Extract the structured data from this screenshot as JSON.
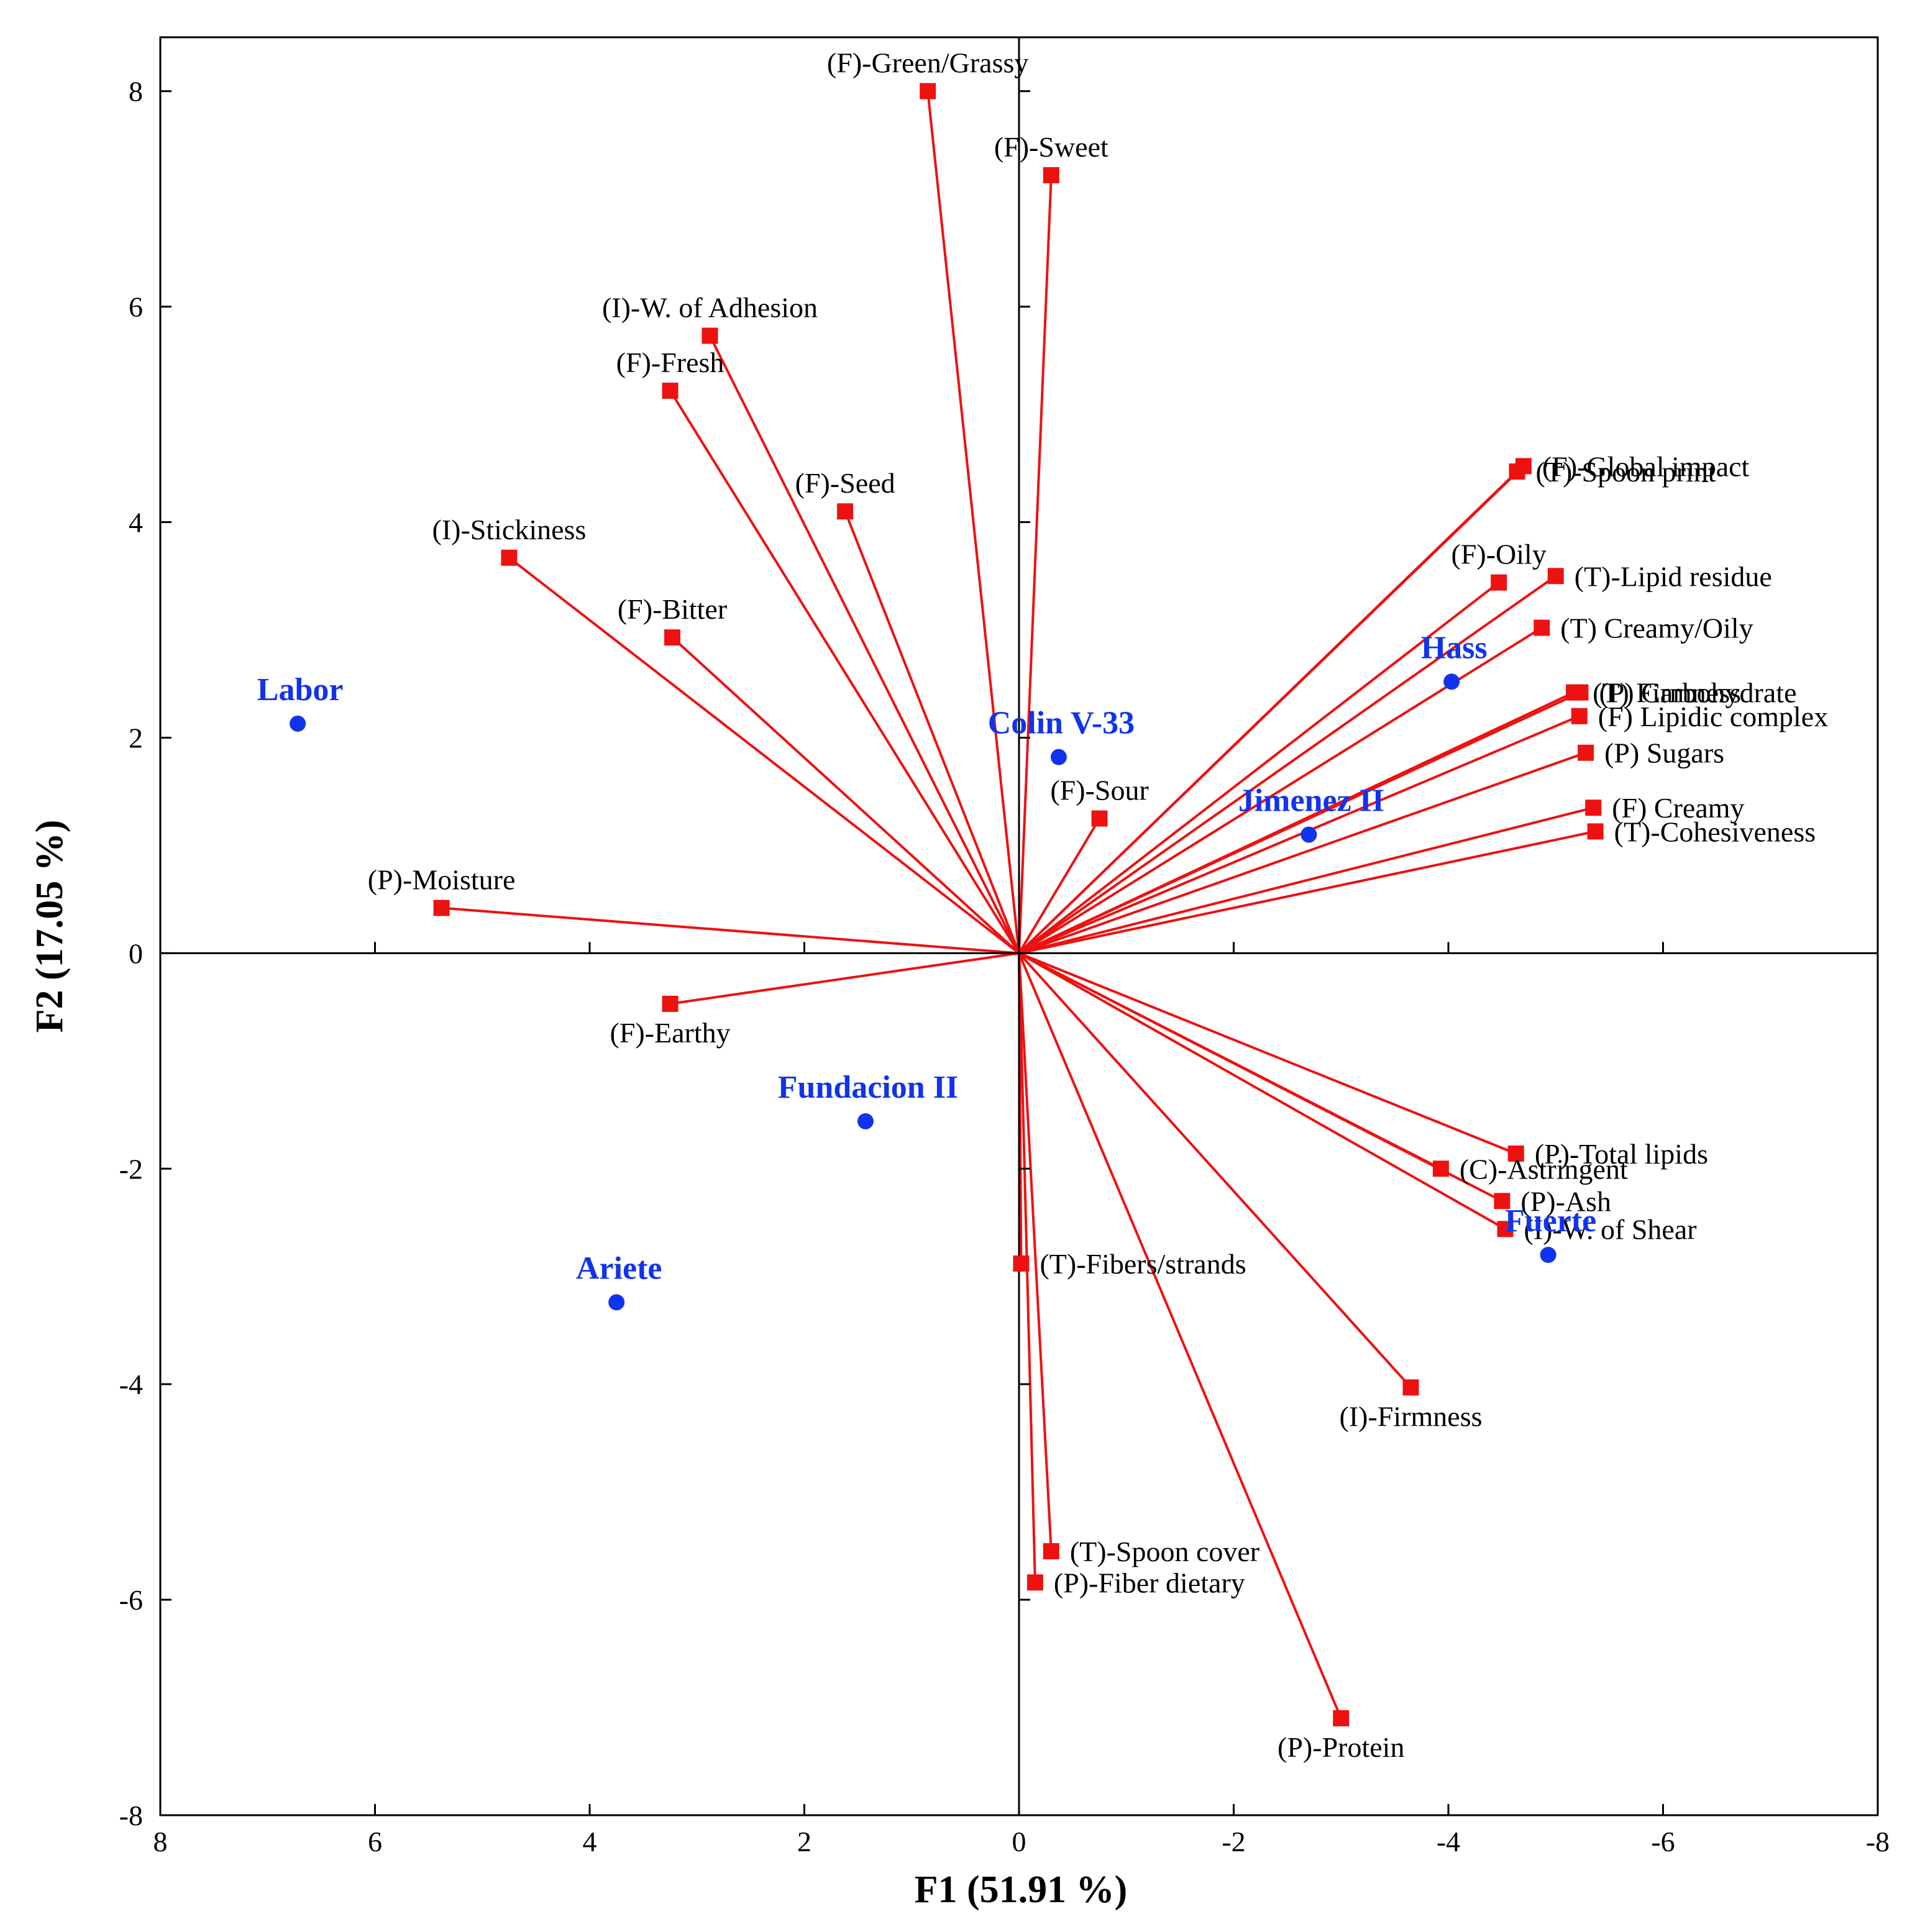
{
  "chart_data": {
    "type": "scatter",
    "subtype": "pca-biplot",
    "title": "",
    "xlabel": "F1 (51.91 %)",
    "ylabel": "F2 (17.05 %)",
    "xlim": [
      8,
      -8
    ],
    "ylim": [
      -8,
      8.5
    ],
    "x_ticks": [
      8,
      6,
      4,
      2,
      0,
      -2,
      -4,
      -6,
      -8
    ],
    "y_ticks": [
      8,
      6,
      4,
      2,
      0,
      -2,
      -4,
      -6,
      -8
    ],
    "x_tick_labels": [
      "8",
      "6",
      "4",
      "2",
      "0",
      "-2",
      "-4",
      "-6",
      "-8"
    ],
    "y_tick_labels": [
      "8",
      "6",
      "4",
      "2",
      "0",
      "-2",
      "-4",
      "-6",
      "-8"
    ],
    "grid": false,
    "colors": {
      "variables": "#ee1111",
      "observations": "#1133ee",
      "axes": "#000000"
    },
    "variables": [
      {
        "name": "(F)-Green/Grassy",
        "x": 0.85,
        "y": 8.0,
        "label_pos": "above"
      },
      {
        "name": "(F)-Sweet",
        "x": -0.3,
        "y": 7.22,
        "label_pos": "above"
      },
      {
        "name": "(I)-W. of Adhesion",
        "x": 2.88,
        "y": 5.73,
        "label_pos": "above"
      },
      {
        "name": "(F)-Fresh",
        "x": 3.25,
        "y": 5.22,
        "label_pos": "above"
      },
      {
        "name": "(F)-Seed",
        "x": 1.62,
        "y": 4.1,
        "label_pos": "above"
      },
      {
        "name": "(I)-Stickiness",
        "x": 4.75,
        "y": 3.67,
        "label_pos": "above"
      },
      {
        "name": "(F)-Bitter",
        "x": 3.23,
        "y": 2.93,
        "label_pos": "above"
      },
      {
        "name": "(F)-Sour",
        "x": -0.75,
        "y": 1.25,
        "label_pos": "above"
      },
      {
        "name": "(P)-Moisture",
        "x": 5.38,
        "y": 0.42,
        "label_pos": "above"
      },
      {
        "name": "(F)-Earthy",
        "x": 3.25,
        "y": -0.47,
        "label_pos": "below"
      },
      {
        "name": "(F)-Global impact",
        "x": -4.7,
        "y": 4.52,
        "label_pos": "right"
      },
      {
        "name": "(T)-Spoon print",
        "x": -4.64,
        "y": 4.47,
        "label_pos": "right"
      },
      {
        "name": "(F)-Oily",
        "x": -4.47,
        "y": 3.44,
        "label_pos": "above"
      },
      {
        "name": "(T)-Lipid residue",
        "x": -5.0,
        "y": 3.5,
        "label_pos": "right"
      },
      {
        "name": "(T) Creamy/Oily",
        "x": -4.87,
        "y": 3.02,
        "label_pos": "right"
      },
      {
        "name": "(T) Firmness",
        "x": -5.17,
        "y": 2.42,
        "label_pos": "right"
      },
      {
        "name": "(P) Carbohydrate",
        "x": -5.23,
        "y": 2.42,
        "label_pos": "right"
      },
      {
        "name": "(F) Lipidic complex",
        "x": -5.22,
        "y": 2.2,
        "label_pos": "right"
      },
      {
        "name": "(P) Sugars",
        "x": -5.28,
        "y": 1.86,
        "label_pos": "right"
      },
      {
        "name": "(F) Creamy",
        "x": -5.35,
        "y": 1.35,
        "label_pos": "right"
      },
      {
        "name": "(T)-Cohesiveness",
        "x": -5.37,
        "y": 1.13,
        "label_pos": "right"
      },
      {
        "name": "(P)-Total lipids",
        "x": -4.63,
        "y": -1.86,
        "label_pos": "right"
      },
      {
        "name": "(C)-Astringent",
        "x": -3.93,
        "y": -2.0,
        "label_pos": "right"
      },
      {
        "name": "(P)-Ash",
        "x": -4.5,
        "y": -2.3,
        "label_pos": "right"
      },
      {
        "name": "(I)-W. of Shear",
        "x": -4.53,
        "y": -2.56,
        "label_pos": "right"
      },
      {
        "name": "(I)-Firmness",
        "x": -3.65,
        "y": -4.03,
        "label_pos": "below"
      },
      {
        "name": "(T)-Fibers/strands",
        "x": -0.02,
        "y": -2.88,
        "label_pos": "right"
      },
      {
        "name": "(T)-Spoon cover",
        "x": -0.3,
        "y": -5.55,
        "label_pos": "right"
      },
      {
        "name": "(P)-Fiber dietary",
        "x": -0.15,
        "y": -5.84,
        "label_pos": "right"
      },
      {
        "name": "(P)-Protein",
        "x": -3.0,
        "y": -7.1,
        "label_pos": "below"
      }
    ],
    "observations": [
      {
        "name": "Labor",
        "x": 6.72,
        "y": 2.13
      },
      {
        "name": "Colin V-33",
        "x": -0.37,
        "y": 1.82
      },
      {
        "name": "Hass",
        "x": -4.03,
        "y": 2.52
      },
      {
        "name": "Jimenez II",
        "x": -2.7,
        "y": 1.1
      },
      {
        "name": "Fundacion II",
        "x": 1.43,
        "y": -1.56
      },
      {
        "name": "Ariete",
        "x": 3.75,
        "y": -3.24
      },
      {
        "name": "Fuerte",
        "x": -4.93,
        "y": -2.8
      }
    ]
  }
}
